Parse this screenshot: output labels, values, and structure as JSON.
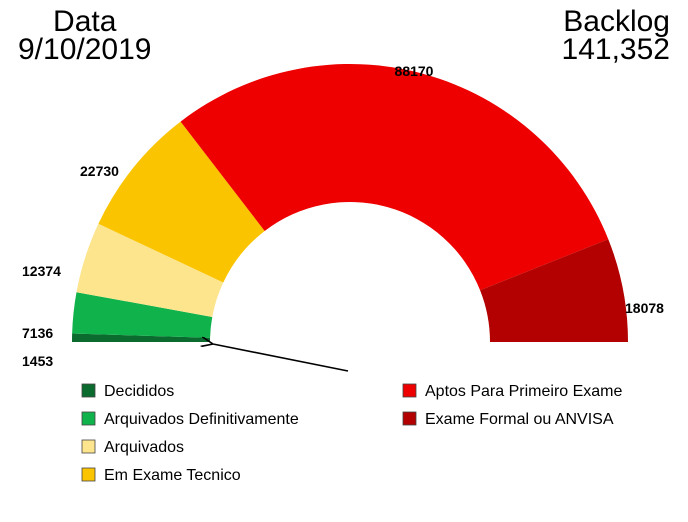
{
  "header": {
    "left_title": "Data",
    "left_value": "9/10/2019",
    "right_title": "Backlog",
    "right_value": "141,352"
  },
  "chart_data": {
    "type": "pie",
    "subtype": "half-donut",
    "title": "",
    "total": 141352,
    "categories": [
      "Decididos",
      "Arquivados Definitivamente",
      "Arquivados",
      "Em Exame Tecnico",
      "Aptos Para Primeiro Exame",
      "Exame Formal ou ANVISA"
    ],
    "values": [
      1453,
      7136,
      12374,
      22730,
      88170,
      18078
    ],
    "labels": [
      "1453",
      "7136",
      "12374",
      "22730",
      "88170",
      "18078"
    ],
    "colors": [
      "#0b6b2e",
      "#10b24c",
      "#fde58e",
      "#fbc400",
      "#ee0000",
      "#b30000"
    ],
    "legend_position": "bottom",
    "annotations": [
      "arrow pointing to the Decididos/Arquivados Definitivamente boundary"
    ]
  }
}
